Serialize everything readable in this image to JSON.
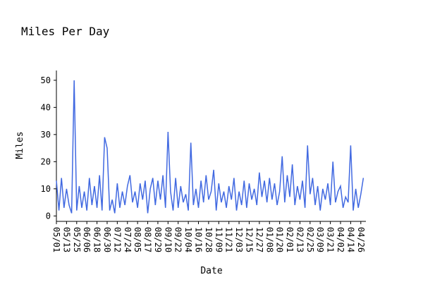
{
  "chart_data": {
    "type": "line",
    "title": "Miles Per Day",
    "xlabel": "Date",
    "ylabel": "Miles",
    "x": [
      0,
      3,
      6,
      9,
      12,
      15,
      18,
      21,
      24,
      27,
      30,
      33,
      36,
      39,
      42,
      45,
      48,
      51,
      54,
      57,
      60,
      63,
      66,
      69,
      72,
      75,
      78,
      81,
      84,
      87,
      90,
      93,
      96,
      99,
      102,
      105,
      108,
      111,
      114,
      117,
      120,
      123,
      126,
      129,
      132,
      135,
      138,
      141,
      144,
      147,
      150,
      153,
      156,
      159,
      162,
      165,
      168,
      171,
      174,
      177,
      180,
      183,
      186,
      189,
      192,
      195,
      198,
      201,
      204,
      207,
      210,
      213,
      216,
      219,
      222,
      225,
      228,
      231,
      234,
      237,
      240,
      243,
      246,
      249,
      252,
      255,
      258,
      261,
      264,
      267,
      270,
      273,
      276,
      279,
      282,
      285,
      288,
      291,
      294,
      297,
      300,
      303,
      306,
      309,
      312,
      315,
      318,
      321,
      324,
      327,
      330,
      333,
      336,
      339,
      342,
      345,
      348,
      351,
      354,
      357,
      360,
      363
    ],
    "series": [
      {
        "name": "Miles",
        "color": "#4169e1",
        "values": [
          13,
          2,
          14,
          3,
          10,
          4,
          1,
          50,
          2,
          11,
          3,
          9,
          2,
          14,
          4,
          11,
          3,
          15,
          2,
          29,
          25,
          2,
          6,
          1,
          12,
          3,
          9,
          4,
          11,
          15,
          5,
          9,
          3,
          12,
          6,
          13,
          1,
          10,
          14,
          4,
          13,
          6,
          15,
          3,
          31,
          9,
          2,
          14,
          3,
          11,
          5,
          8,
          2,
          27,
          4,
          10,
          3,
          13,
          5,
          15,
          6,
          9,
          17,
          2,
          12,
          5,
          9,
          3,
          11,
          6,
          14,
          2,
          9,
          4,
          13,
          3,
          12,
          6,
          10,
          4,
          16,
          7,
          13,
          5,
          14,
          6,
          12,
          4,
          9,
          22,
          5,
          15,
          7,
          19,
          4,
          11,
          6,
          13,
          3,
          26,
          8,
          14,
          4,
          11,
          2,
          10,
          6,
          12,
          4,
          20,
          5,
          9,
          11,
          3,
          7,
          5,
          26,
          2,
          10,
          3,
          8,
          14
        ]
      }
    ],
    "xlim": [
      0,
      366
    ],
    "xticks": [
      {
        "value": 0,
        "label": "05/01"
      },
      {
        "value": 12,
        "label": "05/13"
      },
      {
        "value": 24,
        "label": "05/25"
      },
      {
        "value": 36,
        "label": "06/06"
      },
      {
        "value": 48,
        "label": "06/18"
      },
      {
        "value": 60,
        "label": "06/30"
      },
      {
        "value": 72,
        "label": "07/12"
      },
      {
        "value": 84,
        "label": "07/24"
      },
      {
        "value": 96,
        "label": "08/05"
      },
      {
        "value": 108,
        "label": "08/17"
      },
      {
        "value": 120,
        "label": "08/29"
      },
      {
        "value": 132,
        "label": "09/10"
      },
      {
        "value": 144,
        "label": "09/22"
      },
      {
        "value": 156,
        "label": "10/04"
      },
      {
        "value": 168,
        "label": "10/16"
      },
      {
        "value": 180,
        "label": "10/28"
      },
      {
        "value": 192,
        "label": "11/09"
      },
      {
        "value": 204,
        "label": "11/21"
      },
      {
        "value": 216,
        "label": "12/03"
      },
      {
        "value": 228,
        "label": "12/15"
      },
      {
        "value": 240,
        "label": "12/27"
      },
      {
        "value": 252,
        "label": "01/08"
      },
      {
        "value": 264,
        "label": "01/20"
      },
      {
        "value": 276,
        "label": "02/01"
      },
      {
        "value": 288,
        "label": "02/13"
      },
      {
        "value": 300,
        "label": "02/25"
      },
      {
        "value": 312,
        "label": "03/09"
      },
      {
        "value": 324,
        "label": "03/21"
      },
      {
        "value": 336,
        "label": "04/02"
      },
      {
        "value": 348,
        "label": "04/14"
      },
      {
        "value": 360,
        "label": "04/26"
      }
    ],
    "ylim": [
      -2,
      53.6
    ],
    "yticks": [
      0,
      10,
      20,
      30,
      40,
      50
    ]
  }
}
